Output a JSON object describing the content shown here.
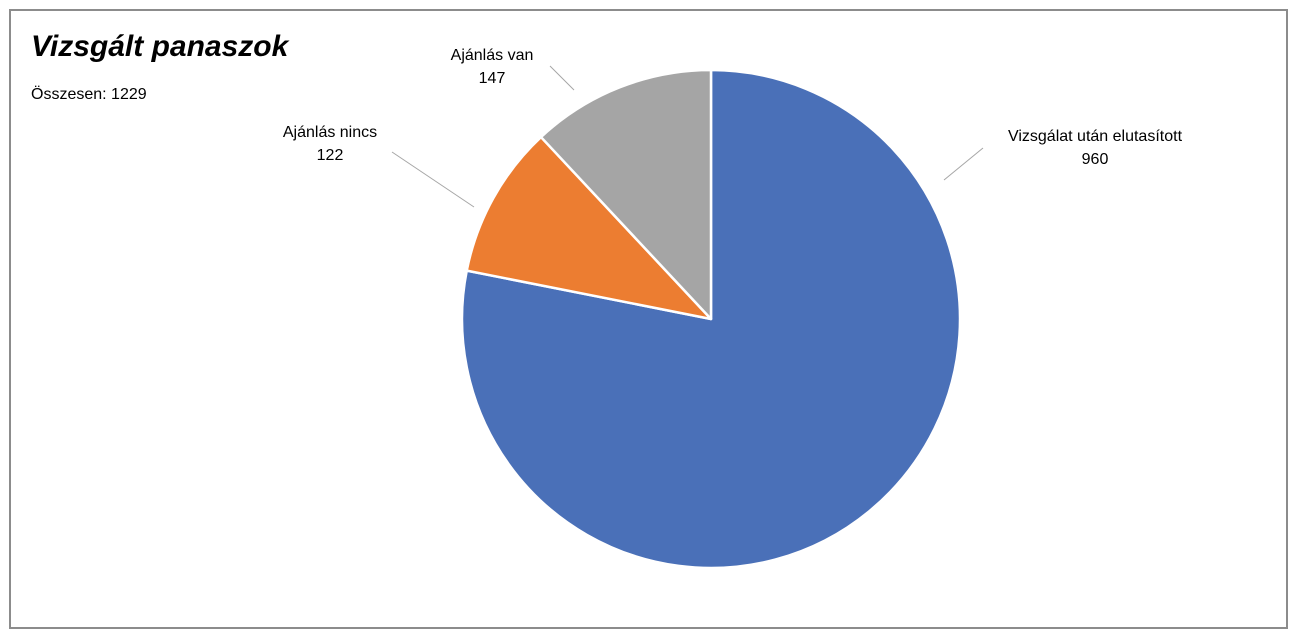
{
  "chart_data": {
    "type": "pie",
    "title": "Vizsgált panaszok",
    "subtitle": {
      "label": "Összesen:",
      "value": "1229"
    },
    "slices": [
      {
        "label": "Vizsgálat után elutasított",
        "value": 960,
        "color": "#4a70b8"
      },
      {
        "label": "Ajánlás nincs",
        "value": 122,
        "color": "#ec7d31"
      },
      {
        "label": "Ajánlás van",
        "value": 147,
        "color": "#a5a5a5"
      }
    ],
    "start_angle_deg": 0,
    "direction": "clockwise",
    "legend": "none",
    "data_labels": "outside-with-leader-lines"
  }
}
